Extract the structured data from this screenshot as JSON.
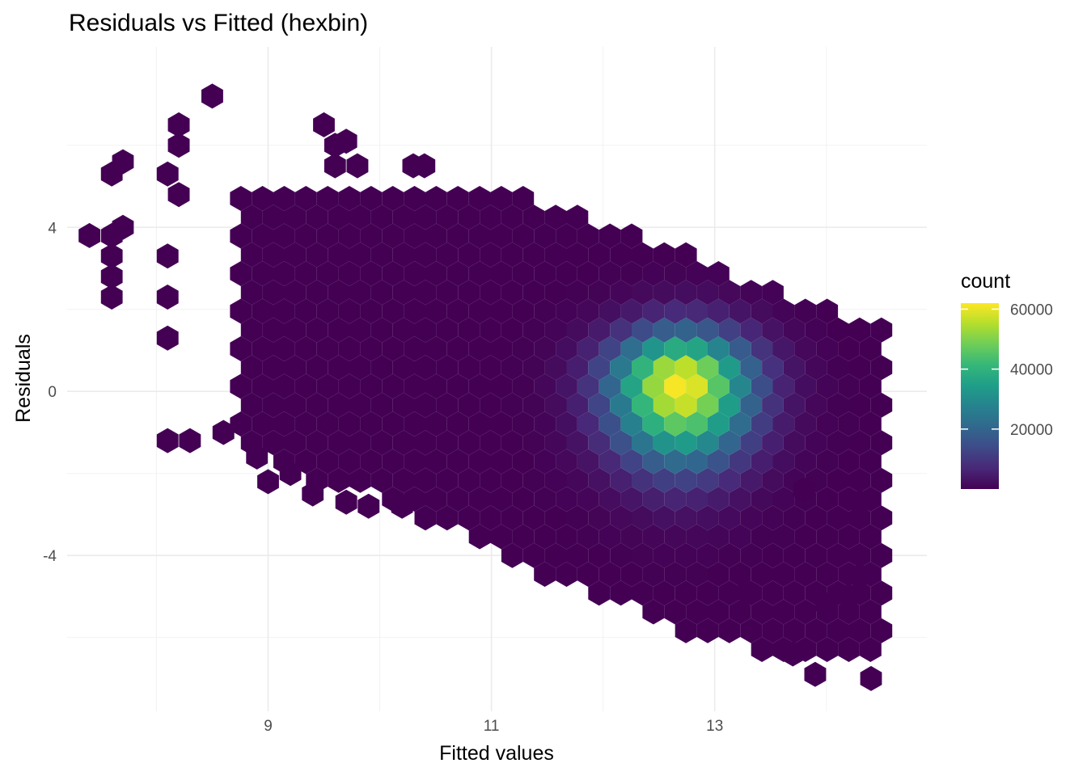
{
  "chart_data": {
    "type": "hexbin",
    "title": "Residuals vs Fitted (hexbin)",
    "xlabel": "Fitted values",
    "ylabel": "Residuals",
    "x_ticks": [
      9,
      11,
      13
    ],
    "x_tick_labels": [
      "9",
      "11",
      "13"
    ],
    "y_ticks": [
      -4,
      0,
      4
    ],
    "y_tick_labels": [
      "-4",
      "0",
      "4"
    ],
    "xlim": [
      7.2,
      14.9
    ],
    "ylim": [
      -7.8,
      8.4
    ],
    "grid": true,
    "legend": {
      "title": "count",
      "position": "right",
      "ticks": [
        20000,
        40000,
        60000
      ],
      "tick_labels": [
        "20000",
        "40000",
        "60000"
      ],
      "range": [
        1,
        62000
      ],
      "palette": "viridis",
      "colors": [
        "#440154",
        "#482878",
        "#3E4A89",
        "#31688E",
        "#26828E",
        "#1F9E89",
        "#35B779",
        "#6DCD59",
        "#B4DE2C",
        "#FDE725"
      ]
    },
    "density_peak": {
      "x": 12.7,
      "y": 0.2,
      "count": 62000
    },
    "envelope": {
      "x_range": [
        8.0,
        14.5
      ],
      "upper_residual_at_x": [
        [
          8.0,
          4.3
        ],
        [
          9.0,
          4.9
        ],
        [
          10.0,
          4.9
        ],
        [
          11.0,
          5.1
        ],
        [
          12.0,
          4.1
        ],
        [
          13.0,
          3.1
        ],
        [
          14.0,
          2.1
        ],
        [
          14.5,
          1.5
        ]
      ],
      "lower_residual_at_x": [
        [
          9.0,
          -2.0
        ],
        [
          10.0,
          -2.6
        ],
        [
          11.0,
          -3.9
        ],
        [
          12.0,
          -5.1
        ],
        [
          13.0,
          -6.1
        ],
        [
          14.0,
          -6.8
        ],
        [
          14.5,
          -6.5
        ]
      ]
    },
    "outlier_bins": [
      [
        8.5,
        7.2
      ],
      [
        8.2,
        6.5
      ],
      [
        8.2,
        6.0
      ],
      [
        7.7,
        5.6
      ],
      [
        7.6,
        5.3
      ],
      [
        8.1,
        5.3
      ],
      [
        8.2,
        4.8
      ],
      [
        7.7,
        4.0
      ],
      [
        7.6,
        3.8
      ],
      [
        7.4,
        3.8
      ],
      [
        7.6,
        3.3
      ],
      [
        7.6,
        2.8
      ],
      [
        7.6,
        2.3
      ],
      [
        8.1,
        2.3
      ],
      [
        8.1,
        3.3
      ],
      [
        8.1,
        1.3
      ],
      [
        8.1,
        -1.2
      ],
      [
        8.3,
        -1.2
      ],
      [
        8.6,
        -1.0
      ],
      [
        8.9,
        -1.6
      ],
      [
        9.5,
        6.5
      ],
      [
        9.6,
        6.0
      ],
      [
        9.7,
        6.1
      ],
      [
        9.6,
        5.5
      ],
      [
        9.8,
        5.5
      ],
      [
        10.3,
        5.5
      ],
      [
        10.4,
        5.5
      ],
      [
        9.2,
        -2.0
      ],
      [
        9.0,
        -2.2
      ],
      [
        9.4,
        -2.5
      ],
      [
        9.7,
        -2.7
      ],
      [
        9.9,
        -2.8
      ],
      [
        10.2,
        -2.8
      ],
      [
        13.3,
        -4.9
      ],
      [
        14.0,
        -5.2
      ],
      [
        14.2,
        -5.0
      ],
      [
        14.3,
        -4.5
      ],
      [
        14.3,
        -2.7
      ],
      [
        13.8,
        -2.4
      ],
      [
        14.4,
        -7.0
      ],
      [
        13.9,
        -6.9
      ],
      [
        13.7,
        -6.4
      ]
    ]
  }
}
